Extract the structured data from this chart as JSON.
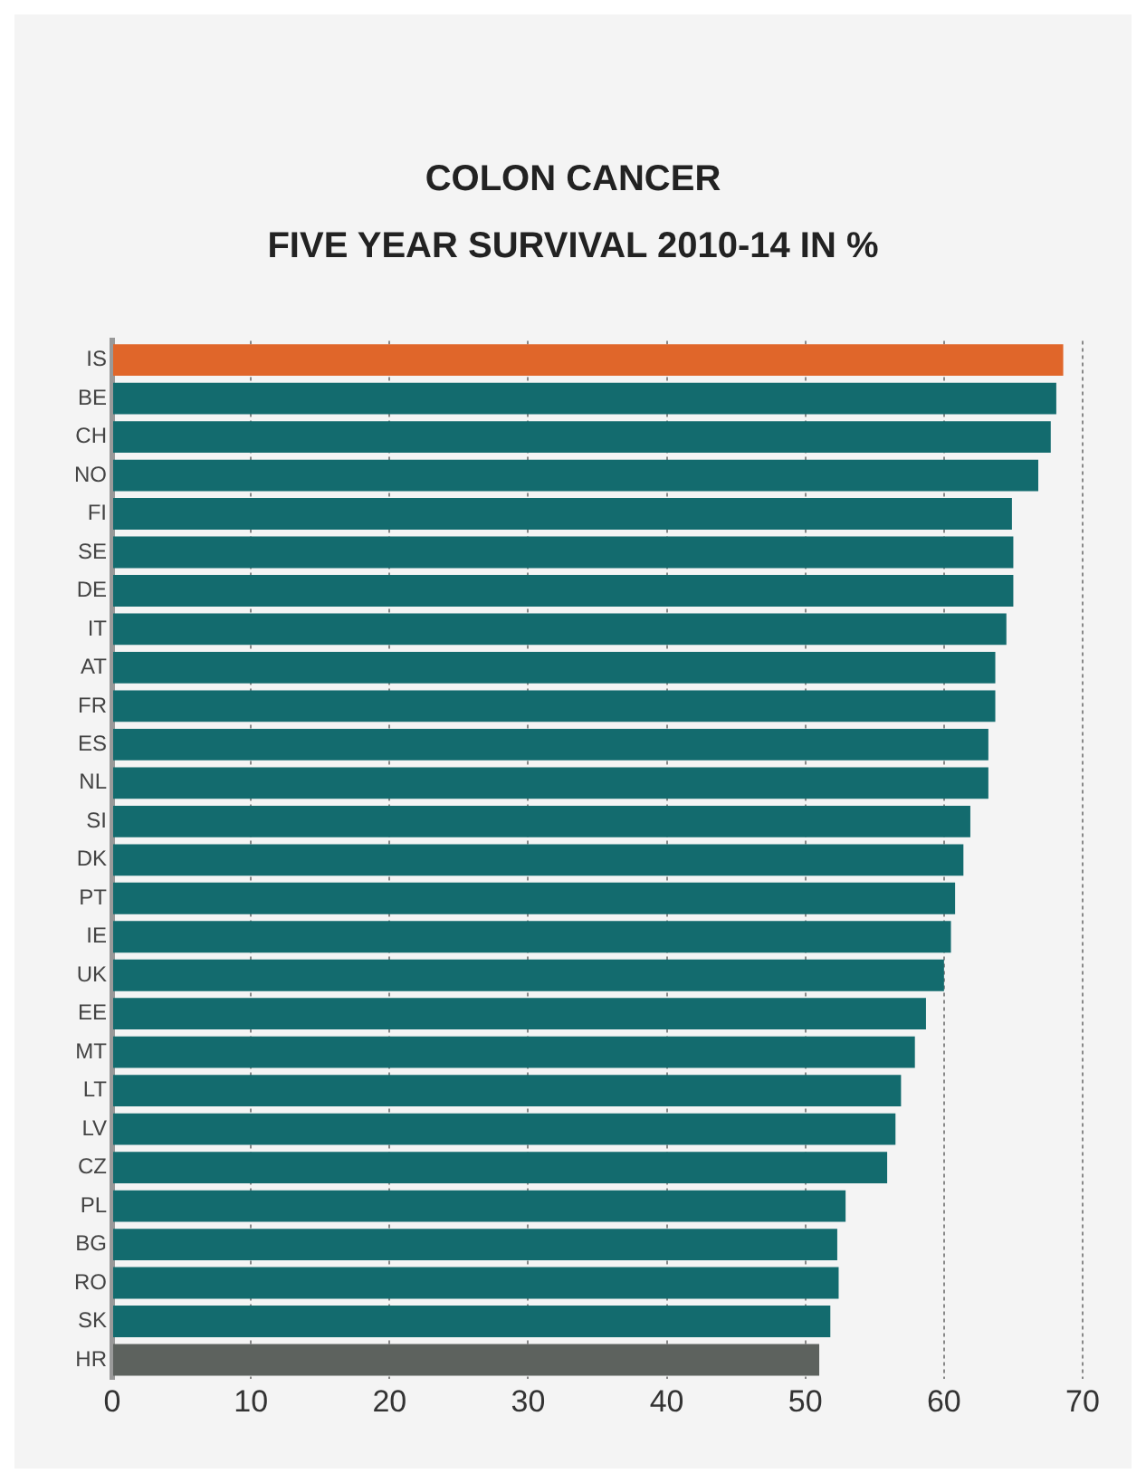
{
  "chart_data": {
    "type": "bar",
    "orientation": "horizontal",
    "title": "COLON CANCER",
    "subtitle": "FIVE YEAR SURVIVAL 2010-14 IN %",
    "categories": [
      "IS",
      "BE",
      "CH",
      "NO",
      "FI",
      "SE",
      "DE",
      "IT",
      "AT",
      "FR",
      "ES",
      "NL",
      "SI",
      "DK",
      "PT",
      "IE",
      "UK",
      "EE",
      "MT",
      "LT",
      "LV",
      "CZ",
      "PL",
      "BG",
      "RO",
      "SK",
      "HR"
    ],
    "values": [
      68.6,
      68.1,
      67.7,
      66.8,
      64.9,
      65.0,
      65.0,
      64.5,
      63.7,
      63.7,
      63.2,
      63.2,
      61.9,
      61.4,
      60.8,
      60.5,
      60.0,
      58.7,
      57.9,
      56.9,
      56.5,
      55.9,
      52.9,
      52.3,
      52.4,
      51.8,
      51.0
    ],
    "colors": [
      "#e0662a",
      "#136b6e",
      "#136b6e",
      "#136b6e",
      "#136b6e",
      "#136b6e",
      "#136b6e",
      "#136b6e",
      "#136b6e",
      "#136b6e",
      "#136b6e",
      "#136b6e",
      "#136b6e",
      "#136b6e",
      "#136b6e",
      "#136b6e",
      "#136b6e",
      "#136b6e",
      "#136b6e",
      "#136b6e",
      "#136b6e",
      "#136b6e",
      "#136b6e",
      "#136b6e",
      "#136b6e",
      "#136b6e",
      "#5d625e"
    ],
    "xlim": [
      0,
      70
    ],
    "xticks": [
      0,
      10,
      20,
      30,
      40,
      50,
      60,
      70
    ],
    "grid": "x",
    "legend": false
  }
}
